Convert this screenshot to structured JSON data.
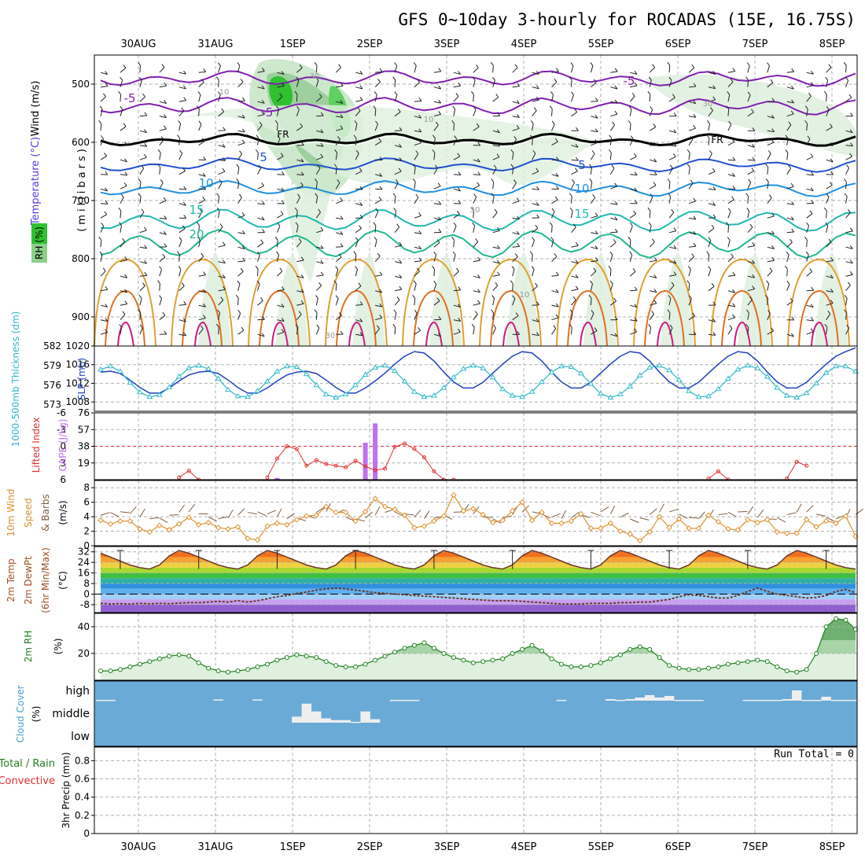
{
  "title": "GFS 0~10day 3-hourly for ROCADAS (15E, 16.75S)",
  "date_labels": [
    "30AUG",
    "31AUG",
    "1SEP",
    "2SEP",
    "3SEP",
    "4SEP",
    "5SEP",
    "6SEP",
    "7SEP",
    "8SEP"
  ],
  "colors": {
    "grid": "#b0b0b0",
    "slp": "#2040c0",
    "thickness": "#30b8c8",
    "lifted_index": "#e03030",
    "cape": "#c070f0",
    "wind_speed": "#e09030",
    "barb": "#806040",
    "rh": "#208020",
    "rh_fill": "#dff0df",
    "cloud_bg": "#6aaad6",
    "cloud_bar": "#eeeeee",
    "temp_line": "#6a3a2a",
    "dewpt_line": "#6a3a2a"
  },
  "panels": {
    "upper": {
      "ylabel_wind": "Wind (m/s)",
      "ylabel_temp": "Temperature (°C)",
      "ylabel_rh": "RH (%)",
      "ylabel_mb": "(millibars)",
      "y_ticks": [
        500,
        600,
        700,
        800,
        900
      ],
      "ylim": [
        450,
        950
      ],
      "contour_labels": [
        "-5",
        "-5",
        "-5",
        "5",
        "5",
        "10",
        "10",
        "15",
        "15",
        "20",
        "FR",
        "FR",
        "10",
        "10",
        "30",
        "30",
        "30",
        "30",
        "10"
      ]
    },
    "slp": {
      "ylabel_left": "1000-500mb Thickness (dm)",
      "ylabel_right": "SLP (mb)",
      "left_ticks": [
        582,
        579,
        576,
        573
      ],
      "right_ticks": [
        1020,
        1016,
        1012,
        1008
      ],
      "slp_ylim": [
        1006,
        1020
      ],
      "thk_ylim": [
        572,
        582
      ]
    },
    "cape": {
      "ylabel_left": "Lifted Index",
      "ylabel_right": "CAPE (J/kg)",
      "left_ticks": [
        "-6",
        "-3",
        "0",
        "3",
        "6"
      ],
      "right_ticks": [
        "76",
        "57",
        "38",
        "19"
      ],
      "li_ylim": [
        6,
        -6
      ],
      "cape_ylim": [
        0,
        76
      ]
    },
    "wind10": {
      "ylabel": "10m Wind Speed & Barbs (m/s)",
      "ylabel_a": "10m Wind",
      "ylabel_b": "Speed",
      "ylabel_c": "& Barbs",
      "ylabel_d": "(m/s)",
      "ticks": [
        8,
        6,
        4,
        2,
        0
      ],
      "ylim": [
        0,
        9
      ]
    },
    "temp": {
      "ylabel_a": "2m Temp",
      "ylabel_b": "2m DewPt",
      "ylabel_c": "(6hr Min/Max)",
      "ylabel_d": "(°C)",
      "ticks": [
        "32",
        "24",
        "16",
        "8",
        "0",
        "-8"
      ],
      "tick_values": [
        32,
        24,
        16,
        8,
        0,
        -8
      ],
      "ylim": [
        -14,
        36
      ]
    },
    "rh": {
      "ylabel_a": "2m RH",
      "ylabel_b": "(%)",
      "ticks": [
        40,
        20
      ],
      "ylim": [
        0,
        50
      ]
    },
    "cloud": {
      "ylabel_a": "Cloud Cover",
      "ylabel_b": "(%)",
      "levels": [
        "high",
        "middle",
        "low"
      ]
    },
    "precip": {
      "ylabel_a": "Total / Rain",
      "ylabel_b": "Convective",
      "ylabel_c": "3hr Precip (mm)",
      "ticks": [
        "0.8",
        "0.6",
        "0.4",
        "0.2",
        "0"
      ],
      "tick_values": [
        0.8,
        0.6,
        0.4,
        0.2,
        0
      ],
      "ylim": [
        0,
        0.95
      ],
      "run_total": "Run Total = 0"
    }
  },
  "chart_data": {
    "type": "line",
    "x_start": "29AUG 12Z",
    "x_step_hours": 3,
    "n_steps": 78,
    "slp": [
      1014.4,
      1014.6,
      1014.1,
      1012.7,
      1011.1,
      1009.9,
      1009.9,
      1011.0,
      1012.5,
      1013.8,
      1014.4,
      1014.6,
      1014.1,
      1012.7,
      1011.1,
      1009.9,
      1009.9,
      1011.0,
      1012.5,
      1013.8,
      1014.4,
      1014.6,
      1014.1,
      1012.7,
      1011.1,
      1009.9,
      1009.9,
      1011.0,
      1012.5,
      1014.2,
      1016.1,
      1017.8,
      1018.8,
      1018.5,
      1016.8,
      1014.4,
      1012.3,
      1011.0,
      1011.0,
      1012.2,
      1014.2,
      1016.1,
      1017.8,
      1018.8,
      1018.5,
      1016.8,
      1014.4,
      1012.3,
      1011.0,
      1011.0,
      1012.2,
      1014.2,
      1016.1,
      1017.8,
      1018.8,
      1018.5,
      1016.8,
      1014.4,
      1012.3,
      1011.0,
      1011.0,
      1012.2,
      1014.2,
      1016.1,
      1017.8,
      1018.8,
      1018.5,
      1016.8,
      1014.4,
      1012.3,
      1011.0,
      1011.0,
      1012.2,
      1014.2,
      1016.1,
      1017.8,
      1018.8,
      1019.6
    ],
    "thickness": [
      578.4,
      578.9,
      578.1,
      576.4,
      574.9,
      574.2,
      574.5,
      575.7,
      577.3,
      578.6,
      579.0,
      578.5,
      577.0,
      575.3,
      574.3,
      574.2,
      575.1,
      576.6,
      578.1,
      578.9,
      578.8,
      577.7,
      576.0,
      574.6,
      574.1,
      574.6,
      576.0,
      577.6,
      578.7,
      579.0,
      578.2,
      576.6,
      575.0,
      574.2,
      574.4,
      575.6,
      577.2,
      578.5,
      579.0,
      578.6,
      577.2,
      575.4,
      574.4,
      574.2,
      575.0,
      576.5,
      578.0,
      578.9,
      578.8,
      577.8,
      576.2,
      574.7,
      574.1,
      574.6,
      575.8,
      577.5,
      578.7,
      579.0,
      578.3,
      576.8,
      575.1,
      574.2,
      574.3,
      575.4,
      577.0,
      578.4,
      579.0,
      578.6,
      577.3,
      575.6,
      574.4,
      574.1,
      574.8,
      576.3,
      577.9,
      578.9,
      578.9,
      578.1
    ],
    "lifted_index": {
      "x_index": [
        8,
        9,
        10,
        17,
        18,
        19,
        20,
        21,
        22,
        23,
        24,
        25,
        26,
        27,
        28,
        29,
        30,
        31,
        32,
        33,
        34,
        35,
        36,
        62,
        63,
        64,
        70,
        71,
        72
      ],
      "values": [
        5.6,
        4.4,
        6.0,
        5.6,
        2.2,
        0.0,
        0.5,
        3.5,
        2.5,
        3.2,
        3.5,
        3.8,
        2.6,
        3.6,
        4.3,
        4.0,
        0.1,
        -0.5,
        0.5,
        2.0,
        4.5,
        6.0,
        6.0,
        5.8,
        4.5,
        6.0,
        5.8,
        2.8,
        3.5
      ]
    },
    "cape": {
      "x_index": [
        18,
        27,
        28
      ],
      "values": [
        2,
        42,
        64
      ]
    },
    "wind_speed": [
      3.5,
      3.0,
      3.4,
      3.4,
      2.3,
      1.9,
      2.8,
      2.2,
      3.0,
      3.9,
      2.9,
      3.2,
      2.5,
      2.3,
      2.6,
      1.0,
      0.8,
      2.7,
      3.1,
      2.9,
      3.6,
      4.1,
      4.2,
      5.4,
      4.6,
      4.6,
      3.4,
      4.7,
      6.5,
      5.4,
      5.0,
      4.2,
      2.5,
      2.7,
      3.4,
      4.1,
      7.0,
      4.8,
      5.1,
      4.3,
      3.2,
      3.5,
      4.8,
      6.0,
      3.5,
      4.6,
      3.1,
      3.1,
      3.4,
      4.4,
      2.4,
      2.4,
      3.1,
      2.0,
      1.6,
      0.7,
      1.9,
      4.0,
      2.5,
      3.7,
      2.4,
      2.4,
      4.2,
      3.3,
      2.3,
      2.2,
      3.6,
      3.2,
      3.6,
      1.9,
      1.7,
      1.7,
      3.6,
      2.6,
      3.4,
      3.1,
      4.1,
      1.3
    ],
    "temperature": [
      31.0,
      28.0,
      25.0,
      22.0,
      20.0,
      19.0,
      22.0,
      29.0,
      33.0,
      31.0,
      28.0,
      25.0,
      22.0,
      20.0,
      19.0,
      22.0,
      29.0,
      33.0,
      31.0,
      28.0,
      25.0,
      22.0,
      20.0,
      19.0,
      22.0,
      29.0,
      33.0,
      31.0,
      28.0,
      25.0,
      22.0,
      20.0,
      19.0,
      22.0,
      29.0,
      33.0,
      31.0,
      28.0,
      25.0,
      22.0,
      20.0,
      19.0,
      22.0,
      29.0,
      33.0,
      31.0,
      28.0,
      25.0,
      22.0,
      20.0,
      19.0,
      22.0,
      29.0,
      33.0,
      31.0,
      28.0,
      25.0,
      22.0,
      20.0,
      19.0,
      22.0,
      29.0,
      33.0,
      31.0,
      28.0,
      25.0,
      22.0,
      20.0,
      19.0,
      22.0,
      29.0,
      33.0,
      31.0,
      28.0,
      25.0,
      22.0,
      20.0,
      19.0
    ],
    "dewpoint": [
      -7.0,
      -7.5,
      -7.2,
      -7.6,
      -7.0,
      -7.4,
      -7.0,
      -7.3,
      -6.8,
      -6.5,
      -6.5,
      -6.0,
      -5.5,
      -6.0,
      -5.0,
      -6.0,
      -5.0,
      -3.5,
      -2.0,
      -1.0,
      0.5,
      1.5,
      3.0,
      4.0,
      4.5,
      4.0,
      3.0,
      2.0,
      1.0,
      0.5,
      0.0,
      -0.5,
      -1.0,
      -1.5,
      -2.0,
      -2.5,
      -3.0,
      -3.5,
      -4.0,
      -4.5,
      -5.0,
      -5.0,
      -5.0,
      -5.5,
      -6.0,
      -6.5,
      -7.0,
      -7.5,
      -7.5,
      -7.5,
      -7.0,
      -7.0,
      -7.0,
      -6.5,
      -6.5,
      -6.0,
      -6.0,
      -5.0,
      -4.0,
      -2.0,
      -0.5,
      -1.0,
      -2.0,
      -3.0,
      -3.0,
      -1.0,
      2.0,
      4.5,
      2.0,
      0.0,
      -1.0,
      -2.0,
      -3.0,
      -2.5,
      -1.0,
      2.0,
      3.5,
      1.0
    ],
    "rh2m": [
      7,
      7,
      8,
      10,
      12,
      14,
      16,
      18,
      19,
      18,
      13,
      9,
      7,
      6,
      7,
      8,
      10,
      12,
      15,
      17,
      19,
      18,
      17,
      14,
      11,
      10,
      10,
      12,
      15,
      18,
      21,
      24,
      26,
      28,
      24,
      20,
      17,
      15,
      13,
      14,
      15,
      16,
      20,
      23,
      26,
      22,
      16,
      12,
      10,
      10,
      11,
      13,
      16,
      19,
      23,
      25,
      23,
      17,
      11,
      9,
      8,
      8,
      9,
      10,
      12,
      13,
      14,
      15,
      14,
      10,
      7,
      6,
      8,
      20,
      40,
      46,
      45,
      38
    ],
    "cloud_high": {
      "x_index": [
        0,
        1,
        12,
        16,
        30,
        31,
        32,
        47,
        52,
        53,
        54,
        55,
        56,
        57,
        58,
        59,
        60,
        61,
        66,
        67,
        68,
        69,
        70,
        71,
        72,
        73,
        74,
        75,
        76,
        77
      ],
      "values": [
        2,
        2,
        3,
        3,
        2,
        2,
        2,
        2,
        4,
        2,
        4,
        8,
        14,
        8,
        12,
        2,
        2,
        2,
        2,
        2,
        2,
        2,
        4,
        26,
        2,
        2,
        10,
        2,
        2,
        2
      ]
    },
    "cloud_middle": {
      "x_index": [
        20,
        21,
        22,
        23,
        24,
        25,
        26,
        27,
        28
      ],
      "values": [
        14,
        44,
        26,
        10,
        6,
        6,
        2,
        26,
        8
      ]
    },
    "precip_total": [],
    "precip_convective": []
  }
}
